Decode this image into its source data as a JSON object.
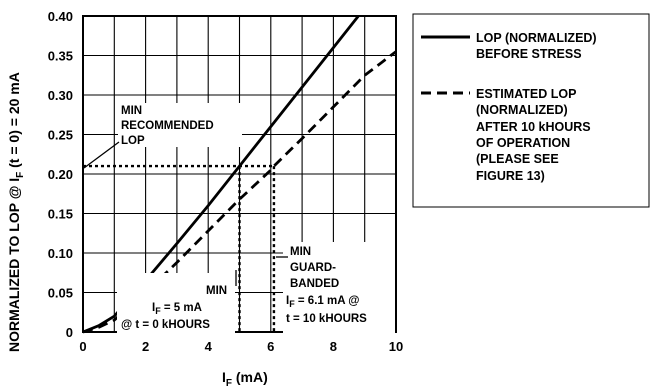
{
  "chart_data": {
    "type": "line",
    "xlabel_main": "I",
    "xlabel_sub": "F",
    "xlabel_unit": " (mA)",
    "ylabel_pre": "NORMALIZED TO LOP @ I",
    "ylabel_sub": "F",
    "ylabel_post": " (t = 0) = 20 mA",
    "xlim": [
      0,
      10
    ],
    "ylim": [
      0,
      0.4
    ],
    "x_ticks": [
      0,
      2,
      4,
      6,
      8,
      10
    ],
    "x_tick_labels": [
      "0",
      "2",
      "4",
      "6",
      "8",
      "10"
    ],
    "y_ticks": [
      0,
      0.05,
      0.1,
      0.15,
      0.2,
      0.25,
      0.3,
      0.35,
      0.4
    ],
    "y_tick_labels": [
      "0",
      "0.05",
      "0.10",
      "0.15",
      "0.20",
      "0.25",
      "0.30",
      "0.35",
      "0.40"
    ],
    "grid": true,
    "series": [
      {
        "style": "solid",
        "x": [
          0,
          0.5,
          1,
          2,
          3,
          4,
          5,
          6,
          7,
          8,
          8.8
        ],
        "y": [
          0,
          0.008,
          0.02,
          0.065,
          0.112,
          0.16,
          0.21,
          0.26,
          0.31,
          0.36,
          0.4
        ]
      },
      {
        "style": "dashed",
        "x": [
          0,
          0.5,
          1,
          2,
          3,
          4,
          5,
          6,
          6.1,
          7,
          8,
          9,
          10
        ],
        "y": [
          0,
          0.006,
          0.015,
          0.05,
          0.088,
          0.128,
          0.168,
          0.205,
          0.21,
          0.245,
          0.285,
          0.325,
          0.355
        ]
      }
    ],
    "reference": {
      "y": 0.21,
      "x_min": 5,
      "x_guard": 6.1
    },
    "annotations": {
      "min_recommended": [
        "MIN",
        "RECOMMENDED",
        "LOP"
      ],
      "min_left": {
        "line1": "MIN",
        "line2_pre": "I",
        "line2_sub": "F",
        "line2_post": " = 5 mA",
        "line3": "@ t = 0 kHOURS"
      },
      "min_right": {
        "line1": "MIN",
        "line2": "GUARD-",
        "line3": "BANDED",
        "line4_pre": "I",
        "line4_sub": "F",
        "line4_post": " = 6.1 mA @",
        "line5": "t = 10 kHOURS"
      }
    },
    "legend": {
      "placement": "right",
      "entries": [
        {
          "style": "solid",
          "lines": [
            "LOP (NORMALIZED)",
            "BEFORE STRESS"
          ]
        },
        {
          "style": "dashed",
          "lines": [
            "ESTIMATED LOP",
            "(NORMALIZED)",
            "AFTER 10 kHOURS",
            "OF OPERATION",
            "(PLEASE SEE",
            "FIGURE 13)"
          ]
        }
      ]
    }
  }
}
